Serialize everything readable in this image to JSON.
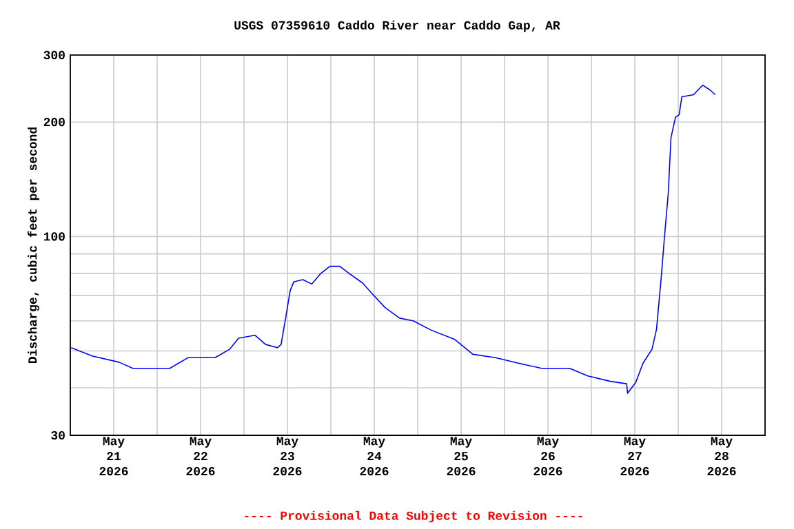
{
  "chart_data": {
    "type": "line",
    "title": "USGS 07359610 Caddo River near Caddo Gap, AR",
    "ylabel": "Discharge, cubic feet per second",
    "annotations": [
      "---- Provisional Data Subject to Revision ----"
    ],
    "log": "y",
    "grid": true,
    "marker": "none",
    "line_style": "solid",
    "xlim": [
      "2026-05-21T00:00",
      "2026-05-29T00:00"
    ],
    "xticks": [
      {
        "value": "2026-05-21T00:00",
        "label": null
      },
      {
        "value": "2026-05-21T12:00",
        "label": "May 21 2026"
      },
      {
        "value": "2026-05-22T00:00",
        "label": null
      },
      {
        "value": "2026-05-22T12:00",
        "label": "May 22 2026"
      },
      {
        "value": "2026-05-23T00:00",
        "label": null
      },
      {
        "value": "2026-05-23T12:00",
        "label": "May 23 2026"
      },
      {
        "value": "2026-05-24T00:00",
        "label": null
      },
      {
        "value": "2026-05-24T12:00",
        "label": "May 24 2026"
      },
      {
        "value": "2026-05-25T00:00",
        "label": null
      },
      {
        "value": "2026-05-25T12:00",
        "label": "May 25 2026"
      },
      {
        "value": "2026-05-26T00:00",
        "label": null
      },
      {
        "value": "2026-05-26T12:00",
        "label": "May 26 2026"
      },
      {
        "value": "2026-05-27T00:00",
        "label": null
      },
      {
        "value": "2026-05-27T12:00",
        "label": "May 27 2026"
      },
      {
        "value": "2026-05-28T00:00",
        "label": null
      },
      {
        "value": "2026-05-28T12:00",
        "label": "May 28 2026"
      },
      {
        "value": "2026-05-29T00:00",
        "label": null
      }
    ],
    "ylim": [
      30,
      300
    ],
    "yticks": [
      30,
      {
        "value": 40,
        "label": null
      },
      {
        "value": 50,
        "label": null
      },
      {
        "value": 60,
        "label": null
      },
      {
        "value": 70,
        "label": null
      },
      {
        "value": 80,
        "label": null
      },
      {
        "value": 90,
        "label": null
      },
      100,
      200,
      300
    ],
    "x": [
      "2026-05-21T00:15",
      "2026-05-21T06:00",
      "2026-05-21T13:30",
      "2026-05-21T17:15",
      "2026-05-21T23:30",
      "2026-05-22T03:30",
      "2026-05-22T08:30",
      "2026-05-22T16:00",
      "2026-05-22T20:00",
      "2026-05-22T22:30",
      "2026-05-23T03:00",
      "2026-05-23T06:00",
      "2026-05-23T09:15",
      "2026-05-23T10:15",
      "2026-05-23T11:30",
      "2026-05-23T12:45",
      "2026-05-23T13:45",
      "2026-05-23T16:15",
      "2026-05-23T18:45",
      "2026-05-23T21:15",
      "2026-05-23T23:45",
      "2026-05-24T02:30",
      "2026-05-24T05:00",
      "2026-05-24T08:45",
      "2026-05-24T11:15",
      "2026-05-24T15:00",
      "2026-05-24T19:00",
      "2026-05-24T22:45",
      "2026-05-25T03:45",
      "2026-05-25T10:15",
      "2026-05-25T15:15",
      "2026-05-25T21:30",
      "2026-05-26T04:00",
      "2026-05-26T10:15",
      "2026-05-26T18:00",
      "2026-05-26T23:00",
      "2026-05-27T05:15",
      "2026-05-27T09:45",
      "2026-05-27T10:00",
      "2026-05-27T12:15",
      "2026-05-27T14:15",
      "2026-05-27T16:45",
      "2026-05-27T18:00",
      "2026-05-27T19:15",
      "2026-05-27T20:15",
      "2026-05-27T21:15",
      "2026-05-27T22:00",
      "2026-05-27T23:15",
      "2026-05-28T00:15",
      "2026-05-28T01:00",
      "2026-05-28T04:15",
      "2026-05-28T06:45",
      "2026-05-28T08:45",
      "2026-05-28T10:15"
    ],
    "series": [
      {
        "color": "#0000ff",
        "values": [
          51,
          48.5,
          46.7,
          45,
          45,
          45,
          48,
          48,
          50.5,
          54,
          55,
          52,
          51,
          52,
          61,
          72,
          76,
          77,
          75,
          80,
          83.5,
          83.5,
          80,
          75.5,
          71,
          65,
          61,
          60,
          56.7,
          53.6,
          49,
          48,
          46.4,
          45,
          45,
          43,
          41.6,
          41,
          38.7,
          41.3,
          46.4,
          50.5,
          57,
          77,
          101,
          130,
          182,
          206,
          209,
          233,
          236,
          250,
          243,
          236
        ]
      }
    ]
  }
}
